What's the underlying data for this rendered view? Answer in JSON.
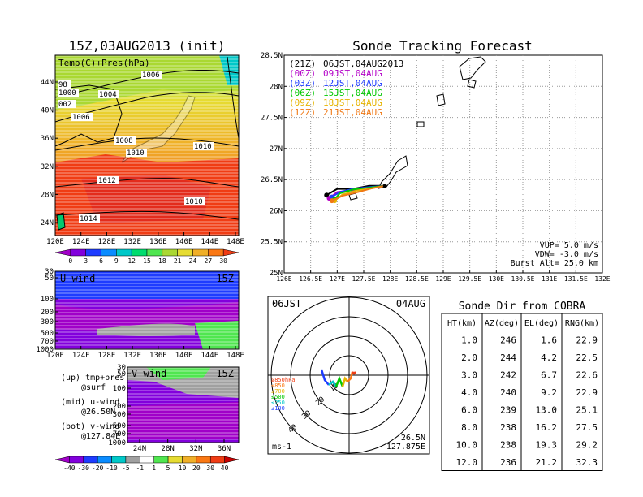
{
  "surface_map": {
    "title": "15Z,03AUG2013 (init)",
    "label": "Temp(C)+Pres(hPa)",
    "x_ticks": [
      "120E",
      "124E",
      "128E",
      "132E",
      "136E",
      "140E",
      "144E",
      "148E"
    ],
    "y_ticks": [
      "24N",
      "28N",
      "32N",
      "36N",
      "40N",
      "44N"
    ],
    "isobar_labels": [
      "98",
      "1000",
      "002",
      "1004",
      "1006",
      "1006",
      "1008",
      "1010",
      "1010",
      "1012",
      "1010",
      "1014"
    ],
    "colorbar": {
      "ticks": [
        "0",
        "3",
        "6",
        "9",
        "12",
        "15",
        "18",
        "21",
        "24",
        "27",
        "30"
      ],
      "colors": [
        "#a000c8",
        "#8200dc",
        "#1e3cff",
        "#0a8cff",
        "#00c8c8",
        "#00dc6e",
        "#50e650",
        "#aad832",
        "#e6dc32",
        "#f0af28",
        "#fa7814",
        "#f03c14"
      ]
    }
  },
  "u_wind": {
    "label": "U-wind",
    "time": "15Z",
    "y_ticks": [
      "30",
      "50",
      "100",
      "200",
      "300",
      "500",
      "700",
      "1000"
    ],
    "x_ticks": [
      "120E",
      "124E",
      "128E",
      "132E",
      "136E",
      "140E",
      "144E",
      "148E"
    ]
  },
  "v_wind": {
    "label": "V-wind",
    "time": "15Z",
    "y_ticks": [
      "30",
      "50",
      "100",
      "200",
      "300",
      "500",
      "700",
      "1000"
    ],
    "x_ticks": [
      "24N",
      "28N",
      "32N",
      "36N"
    ],
    "colorbar": {
      "ticks": [
        "-40",
        "-30",
        "-20",
        "-10",
        "-5",
        "-1",
        "1",
        "5",
        "10",
        "20",
        "30",
        "40"
      ],
      "colors": [
        "#a000c8",
        "#8200dc",
        "#1e3cff",
        "#0a8cff",
        "#00c8c8",
        "#a0a0a0",
        "#ffffff",
        "#50e650",
        "#e6dc32",
        "#f0af28",
        "#fa7814",
        "#f03c14",
        "#c80000"
      ]
    }
  },
  "notes": [
    {
      "a": "(up) tmp+pres",
      "b": "@surf"
    },
    {
      "a": "(mid) u-wind",
      "b": "@26.50N"
    },
    {
      "a": "(bot) v-wind",
      "b": "@127.84E"
    }
  ],
  "tracking": {
    "title": "Sonde Tracking Forecast",
    "x_ticks": [
      "126E",
      "126.5E",
      "127E",
      "127.5E",
      "128E",
      "128.5E",
      "129E",
      "129.5E",
      "130E",
      "130.5E",
      "131E",
      "131.5E",
      "132E"
    ],
    "y_ticks": [
      "25N",
      "25.5N",
      "26N",
      "26.5N",
      "27N",
      "27.5N",
      "28N",
      "28.5N"
    ],
    "legend": [
      {
        "code": "(21Z)",
        "time": "06JST,04AUG2013",
        "color": "#000000"
      },
      {
        "code": "(00Z)",
        "time": "09JST,04AUG",
        "color": "#b400c8"
      },
      {
        "code": "(03Z)",
        "time": "12JST,04AUG",
        "color": "#1e3cff"
      },
      {
        "code": "(06Z)",
        "time": "15JST,04AUG",
        "color": "#00c800"
      },
      {
        "code": "(09Z)",
        "time": "18JST,04AUG",
        "color": "#e6b400"
      },
      {
        "code": "(12Z)",
        "time": "21JST,04AUG",
        "color": "#f07814"
      }
    ],
    "params": [
      "VUP=  5.0  m/s",
      "VDW= -3.0  m/s",
      "Burst Alt=  25.0  km"
    ]
  },
  "polar": {
    "time": "06JST",
    "date": "04AUG",
    "unit": "ms-1",
    "lat": "26.5N",
    "lon": "127.875E",
    "ring_labels": [
      "10",
      "20",
      "30",
      "40"
    ],
    "levels": [
      {
        "label": "≥850hPa",
        "color": "#f03c14"
      },
      {
        "label": "≤850",
        "color": "#fa7814"
      },
      {
        "label": "≤700",
        "color": "#e6b400"
      },
      {
        "label": "≤500",
        "color": "#00c800"
      },
      {
        "label": "≤250",
        "color": "#00c8c8"
      },
      {
        "label": "≤100",
        "color": "#1e3cff"
      }
    ]
  },
  "sonde_table": {
    "title": "Sonde Dir from COBRA",
    "headers": [
      "HT(km)",
      "AZ(deg)",
      "EL(deg)",
      "RNG(km)"
    ],
    "rows": [
      [
        "1.0",
        "246",
        "1.6",
        "22.9"
      ],
      [
        "2.0",
        "244",
        "4.2",
        "22.5"
      ],
      [
        "3.0",
        "242",
        "6.7",
        "22.6"
      ],
      [
        "4.0",
        "240",
        "9.2",
        "22.9"
      ],
      [
        "6.0",
        "239",
        "13.0",
        "25.1"
      ],
      [
        "8.0",
        "238",
        "16.2",
        "27.5"
      ],
      [
        "10.0",
        "238",
        "19.3",
        "29.2"
      ],
      [
        "12.0",
        "236",
        "21.2",
        "32.3"
      ]
    ]
  },
  "chart_data": [
    {
      "type": "table",
      "title": "Sonde Dir from COBRA",
      "columns": [
        "HT(km)",
        "AZ(deg)",
        "EL(deg)",
        "RNG(km)"
      ],
      "rows": [
        [
          1.0,
          246,
          1.6,
          22.9
        ],
        [
          2.0,
          244,
          4.2,
          22.5
        ],
        [
          3.0,
          242,
          6.7,
          22.6
        ],
        [
          4.0,
          240,
          9.2,
          22.9
        ],
        [
          6.0,
          239,
          13.0,
          25.1
        ],
        [
          8.0,
          238,
          16.2,
          27.5
        ],
        [
          10.0,
          238,
          19.3,
          29.2
        ],
        [
          12.0,
          236,
          21.2,
          32.3
        ]
      ]
    },
    {
      "type": "line",
      "title": "Sonde Tracking Forecast",
      "xlim": [
        126,
        132
      ],
      "ylim": [
        25,
        28.5
      ],
      "series": [
        {
          "name": "(21Z)",
          "x": [
            127.9,
            127.6,
            127.3,
            127.0,
            126.8
          ],
          "y": [
            26.4,
            26.4,
            26.35,
            26.35,
            26.25
          ]
        },
        {
          "name": "(00Z)",
          "x": [
            127.9,
            127.6,
            127.3,
            127.0,
            126.85
          ],
          "y": [
            26.4,
            26.37,
            26.33,
            26.3,
            26.2
          ]
        },
        {
          "name": "(03Z)",
          "x": [
            127.9,
            127.6,
            127.3,
            127.05,
            126.9
          ],
          "y": [
            26.4,
            26.38,
            26.35,
            26.3,
            26.22
          ]
        },
        {
          "name": "(06Z)",
          "x": [
            127.9,
            127.6,
            127.3,
            127.05,
            126.95
          ],
          "y": [
            26.4,
            26.37,
            26.34,
            26.28,
            26.18
          ]
        },
        {
          "name": "(09Z)",
          "x": [
            127.9,
            127.65,
            127.35,
            127.1,
            126.95
          ],
          "y": [
            26.4,
            26.36,
            26.32,
            26.26,
            26.16
          ]
        },
        {
          "name": "(12Z)",
          "x": [
            127.9,
            127.65,
            127.4,
            127.1,
            126.9
          ],
          "y": [
            26.4,
            26.36,
            26.3,
            26.24,
            26.16
          ]
        }
      ]
    }
  ]
}
